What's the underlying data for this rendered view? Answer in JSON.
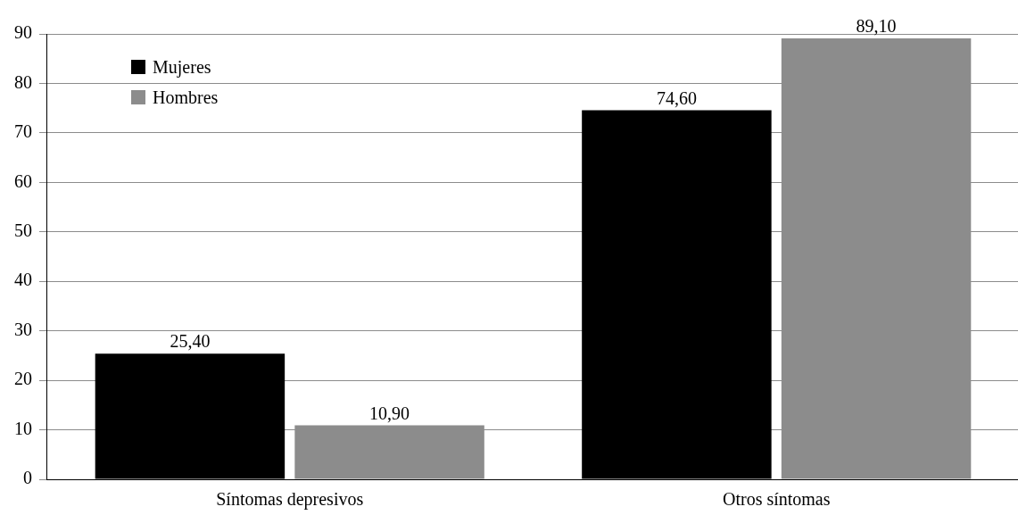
{
  "chart_data": {
    "type": "bar",
    "categories": [
      "Síntomas depresivos",
      "Otros síntomas"
    ],
    "series": [
      {
        "name": "Mujeres",
        "color": "#000000",
        "values": [
          25.4,
          74.6
        ],
        "value_labels": [
          "25,40",
          "74,60"
        ]
      },
      {
        "name": "Hombres",
        "color": "#8c8c8c",
        "values": [
          10.9,
          89.1
        ],
        "value_labels": [
          "10,90",
          "89,10"
        ]
      }
    ],
    "ylim": [
      0,
      90
    ],
    "yticks": [
      0,
      10,
      20,
      30,
      40,
      50,
      60,
      70,
      80,
      90
    ],
    "grid": "y",
    "legend": "top left"
  }
}
